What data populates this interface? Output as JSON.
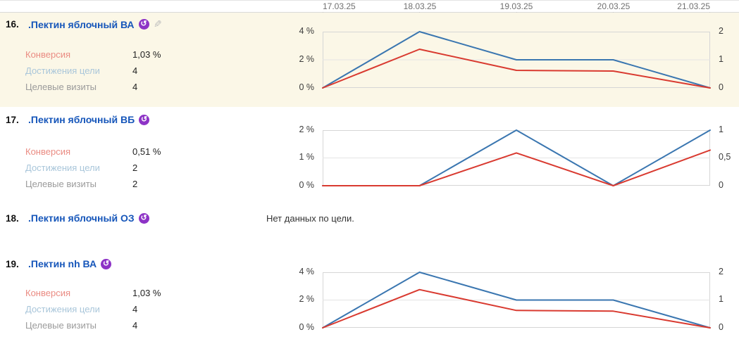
{
  "dates": [
    "17.03.25",
    "18.03.25",
    "19.03.25",
    "20.03.25",
    "21.03.25"
  ],
  "icons": {
    "retargeting_glyph": "↺",
    "pencil_glyph": "✎"
  },
  "colors": {
    "link_blue": "#1656ba",
    "line_blue": "#3a76b0",
    "line_red": "#d93a30",
    "accent_purple": "#8d33c6",
    "pencil_gray": "#bdbdbd",
    "row_highlight": "#fbf7e7",
    "gridline": "#e4e4e4",
    "plot_border": "#d6d6d6",
    "label_conversion": "#ea8b82",
    "label_goal_reaches": "#a9c6da",
    "label_target_visits": "#9b9b9b",
    "value_text": "#222222",
    "date_text": "#707070"
  },
  "rows": [
    {
      "number": "16.",
      "title": ".Пектин яблочный ВА",
      "highlighted": true,
      "has_edit_icon": true,
      "metrics": [
        {
          "label": "Конверсия",
          "value": "1,03 %"
        },
        {
          "label": "Достижения цели",
          "value": "4"
        },
        {
          "label": "Целевые визиты",
          "value": "4"
        }
      ],
      "chart_index": 0
    },
    {
      "number": "17.",
      "title": ".Пектин яблочный ВБ",
      "highlighted": false,
      "has_edit_icon": false,
      "metrics": [
        {
          "label": "Конверсия",
          "value": "0,51 %"
        },
        {
          "label": "Достижения цели",
          "value": "2"
        },
        {
          "label": "Целевые визиты",
          "value": "2"
        }
      ],
      "chart_index": 1
    },
    {
      "number": "18.",
      "title": ".Пектин яблочный ОЗ",
      "highlighted": false,
      "has_edit_icon": false,
      "no_data_message": "Нет данных по цели."
    },
    {
      "number": "19.",
      "title": ".Пектин nh ВА",
      "highlighted": false,
      "has_edit_icon": false,
      "metrics": [
        {
          "label": "Конверсия",
          "value": "1,03 %"
        },
        {
          "label": "Достижения цели",
          "value": "4"
        },
        {
          "label": "Целевые визиты",
          "value": "4"
        }
      ],
      "chart_index": 2
    }
  ],
  "chart_data": [
    {
      "type": "line",
      "x": [
        "17.03.25",
        "18.03.25",
        "19.03.25",
        "20.03.25",
        "21.03.25"
      ],
      "left_axis": {
        "name": "Конверсия, %",
        "max": 4,
        "min": 0,
        "ticks": [
          "4 %",
          "2 %",
          "0 %"
        ]
      },
      "right_axis": {
        "name": "Достижения цели",
        "max": 2,
        "min": 0,
        "ticks": [
          "2",
          "1",
          "0"
        ]
      },
      "grid": true,
      "series": [
        {
          "name": "Достижения цели",
          "axis": "right",
          "color": "blue",
          "values": [
            0,
            2,
            1,
            1,
            0
          ]
        },
        {
          "name": "Конверсия",
          "axis": "left",
          "color": "red",
          "values": [
            0,
            2.75,
            1.25,
            1.2,
            0
          ]
        }
      ]
    },
    {
      "type": "line",
      "x": [
        "17.03.25",
        "18.03.25",
        "19.03.25",
        "20.03.25",
        "21.03.25"
      ],
      "left_axis": {
        "name": "Конверсия, %",
        "max": 2,
        "min": 0,
        "ticks": [
          "2 %",
          "1 %",
          "0 %"
        ]
      },
      "right_axis": {
        "name": "Достижения цели",
        "max": 1,
        "min": 0,
        "ticks": [
          "1",
          "0,5",
          "0"
        ]
      },
      "grid": true,
      "series": [
        {
          "name": "Достижения цели",
          "axis": "right",
          "color": "blue",
          "values": [
            0,
            0,
            1,
            0,
            1
          ]
        },
        {
          "name": "Конверсия",
          "axis": "left",
          "color": "red",
          "values": [
            0,
            0,
            1.18,
            0,
            1.28
          ]
        }
      ]
    },
    {
      "type": "line",
      "x": [
        "17.03.25",
        "18.03.25",
        "19.03.25",
        "20.03.25",
        "21.03.25"
      ],
      "left_axis": {
        "name": "Конверсия, %",
        "max": 4,
        "min": 0,
        "ticks": [
          "4 %",
          "2 %",
          "0 %"
        ]
      },
      "right_axis": {
        "name": "Достижения цели",
        "max": 2,
        "min": 0,
        "ticks": [
          "2",
          "1",
          "0"
        ]
      },
      "grid": true,
      "series": [
        {
          "name": "Достижения цели",
          "axis": "right",
          "color": "blue",
          "values": [
            0,
            2,
            1,
            1,
            0
          ]
        },
        {
          "name": "Конверсия",
          "axis": "left",
          "color": "red",
          "values": [
            0,
            2.75,
            1.25,
            1.2,
            0
          ]
        }
      ]
    }
  ]
}
